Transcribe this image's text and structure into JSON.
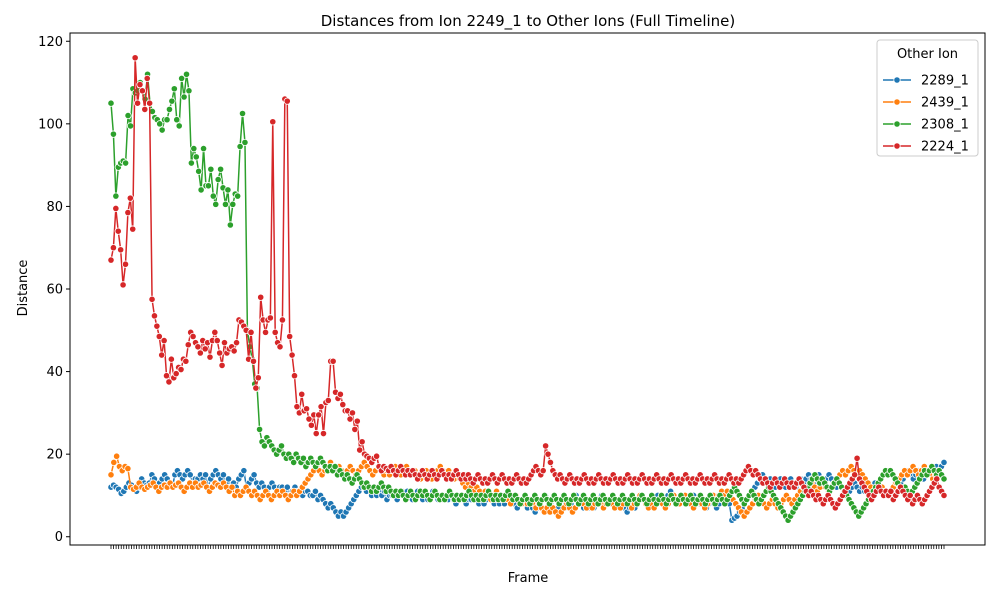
{
  "chart_data": {
    "type": "line",
    "title": "Distances from Ion 2249_1 to Other Ions (Full Timeline)",
    "xlabel": "Frame",
    "ylabel": "Distance",
    "ylim": [
      -2,
      122
    ],
    "yticks": [
      0,
      20,
      40,
      60,
      80,
      100,
      120
    ],
    "legend": {
      "title": "Other Ion",
      "placement": "top-right"
    },
    "grid": false,
    "marker": "circle",
    "series": [
      {
        "name": "2289_1",
        "color": "#1f77b4",
        "values": [
          12,
          12.5,
          12,
          11.5,
          10.5,
          11,
          12,
          13,
          12.5,
          11.5,
          11,
          12,
          14,
          13,
          12.5,
          13,
          15,
          14,
          12,
          13,
          14,
          15,
          14,
          13,
          12,
          15,
          16,
          15,
          14,
          15,
          16,
          15,
          13,
          14,
          14,
          15,
          14,
          15,
          12,
          14,
          15,
          16,
          15,
          14,
          15,
          13,
          14,
          12,
          13,
          12,
          14,
          15,
          16,
          12,
          13,
          14,
          15,
          13,
          12,
          13,
          12,
          11,
          12,
          13,
          12,
          11,
          12,
          12,
          11,
          12,
          10,
          11,
          12,
          11,
          11,
          10,
          11,
          11,
          10,
          10,
          11,
          9,
          10,
          9,
          8,
          7,
          8,
          7,
          6,
          5,
          6,
          5,
          6,
          7,
          8,
          9,
          10,
          11,
          12,
          12,
          11,
          12,
          10,
          11,
          10,
          11,
          10,
          11,
          9,
          10,
          10,
          11,
          9,
          10,
          11,
          10,
          11,
          10,
          9,
          10,
          11,
          10,
          9,
          10,
          9,
          10,
          11,
          10,
          9,
          10,
          9,
          10,
          9,
          10,
          9,
          8,
          9,
          10,
          9,
          8,
          9,
          9,
          10,
          9,
          8,
          9,
          8,
          9,
          10,
          9,
          8,
          9,
          8,
          9,
          8,
          9,
          10,
          9,
          8,
          7,
          8,
          9,
          8,
          7,
          8,
          7,
          6,
          7,
          8,
          9,
          10,
          9,
          8,
          7,
          6,
          7,
          8,
          9,
          8,
          7,
          8,
          9,
          10,
          9,
          8,
          7,
          8,
          7,
          8,
          7,
          8,
          9,
          10,
          9,
          8,
          9,
          8,
          7,
          8,
          9,
          8,
          7,
          6,
          7,
          8,
          7,
          8,
          9,
          10,
          9,
          8,
          9,
          8,
          9,
          10,
          9,
          8,
          9,
          10,
          11,
          10,
          9,
          8,
          9,
          10,
          9,
          8,
          9,
          10,
          9,
          8,
          9,
          8,
          7,
          8,
          9,
          8,
          7,
          8,
          9,
          10,
          9,
          8,
          4,
          4.5,
          5,
          6,
          7,
          8,
          9,
          10,
          11,
          12,
          13,
          14,
          15,
          14,
          13,
          14,
          13,
          12,
          13,
          14,
          13,
          12,
          13,
          14,
          13,
          12,
          13,
          14,
          13,
          14,
          15,
          14,
          13,
          14,
          15,
          14,
          13,
          14,
          15,
          14,
          13,
          12,
          13,
          12,
          11,
          10,
          11,
          12,
          13,
          12,
          11,
          12,
          11,
          12,
          11,
          12,
          13,
          12,
          11,
          12,
          11,
          10,
          11,
          12,
          13,
          12,
          13,
          14,
          15,
          16,
          15,
          14,
          15,
          16,
          15,
          14,
          15,
          16,
          17,
          16,
          17,
          16,
          17,
          18
        ]
      },
      {
        "name": "2439_1",
        "color": "#ff7f0e",
        "values": [
          15,
          18,
          19.5,
          17,
          16,
          17,
          16.5,
          12,
          11.5,
          12,
          13,
          12,
          11.5,
          12,
          12.5,
          13,
          12,
          11,
          12,
          12.5,
          12,
          13,
          12,
          12.5,
          13,
          12,
          11,
          12,
          13,
          12,
          13,
          12,
          12.5,
          13,
          12,
          11,
          12,
          13,
          12.5,
          12,
          13,
          12,
          11,
          12,
          10,
          11,
          10,
          11,
          12,
          11,
          10,
          11,
          10,
          9,
          10,
          11,
          10,
          9,
          10,
          11,
          10,
          11,
          10,
          9,
          10,
          11,
          10,
          11,
          12,
          13,
          14,
          15,
          16,
          17,
          16,
          15,
          16,
          17,
          18,
          17,
          16,
          17,
          16,
          15,
          16,
          17,
          16,
          15,
          16,
          17,
          18,
          17,
          16,
          15,
          16,
          17,
          16,
          15,
          16,
          15,
          16,
          17,
          16,
          15,
          16,
          17,
          16,
          15,
          16,
          15,
          14,
          15,
          16,
          15,
          14,
          15,
          16,
          17,
          16,
          15,
          16,
          15,
          14,
          15,
          14,
          13,
          12,
          13,
          12,
          11,
          12,
          11,
          10,
          11,
          10,
          9,
          10,
          11,
          10,
          9,
          10,
          9,
          8,
          9,
          10,
          9,
          8,
          9,
          8,
          9,
          8,
          7,
          8,
          7,
          6,
          7,
          6,
          7,
          6,
          5,
          6,
          7,
          8,
          7,
          6,
          7,
          8,
          9,
          8,
          7,
          8,
          7,
          8,
          9,
          8,
          7,
          8,
          9,
          8,
          7,
          8,
          7,
          8,
          9,
          8,
          7,
          8,
          9,
          10,
          9,
          8,
          7,
          8,
          7,
          8,
          9,
          8,
          7,
          8,
          9,
          10,
          9,
          8,
          9,
          10,
          9,
          8,
          7,
          8,
          9,
          8,
          7,
          8,
          9,
          10,
          9,
          10,
          11,
          10,
          11,
          10,
          9,
          8,
          7,
          6,
          5,
          6,
          7,
          8,
          9,
          10,
          9,
          8,
          7,
          8,
          9,
          8,
          7,
          8,
          9,
          10,
          9,
          8,
          9,
          10,
          11,
          12,
          11,
          12,
          13,
          12,
          11,
          12,
          13,
          12,
          11,
          12,
          13,
          14,
          15,
          16,
          15,
          16,
          17,
          16,
          15,
          16,
          15,
          14,
          13,
          12,
          11,
          12,
          11,
          12,
          11,
          10,
          11,
          12,
          13,
          14,
          15,
          16,
          15,
          16,
          17,
          16,
          15,
          16,
          17,
          16,
          15,
          14,
          15,
          16,
          15,
          14
        ]
      },
      {
        "name": "2308_1",
        "color": "#2ca02c",
        "values": [
          105,
          97.5,
          82.5,
          89.5,
          90.5,
          91,
          90.5,
          102,
          99.5,
          108.5,
          107.5,
          108,
          110,
          108,
          106,
          112,
          105,
          103,
          101.5,
          101,
          100,
          98.5,
          101,
          101,
          103.5,
          105.5,
          108.5,
          101,
          99.5,
          111,
          106.5,
          112,
          108,
          90.5,
          94,
          92,
          88.5,
          84,
          94,
          85,
          85,
          89,
          82.5,
          80.5,
          86.5,
          89,
          84.5,
          80.5,
          84,
          75.5,
          80.5,
          83,
          82.5,
          94.5,
          102.5,
          95.5,
          50,
          46,
          43,
          37,
          36,
          26,
          23,
          22,
          24,
          23,
          22,
          21,
          20,
          21,
          22,
          20,
          19,
          20,
          19,
          18,
          20,
          19,
          18,
          19,
          17,
          18,
          19,
          18,
          17,
          18,
          19,
          18,
          17,
          16,
          17,
          16,
          17,
          15,
          16,
          15,
          14,
          15,
          14,
          13,
          14,
          15,
          14,
          13,
          12,
          13,
          12,
          11,
          12,
          11,
          12,
          13,
          12,
          11,
          12,
          11,
          10,
          11,
          10,
          11,
          10,
          9,
          10,
          11,
          10,
          9,
          10,
          11,
          10,
          11,
          10,
          9,
          10,
          11,
          10,
          9,
          10,
          9,
          10,
          11,
          10,
          9,
          10,
          9,
          10,
          9,
          10,
          11,
          10,
          9,
          10,
          9,
          10,
          9,
          10,
          11,
          10,
          9,
          10,
          9,
          10,
          9,
          10,
          11,
          10,
          9,
          10,
          9,
          8,
          9,
          10,
          9,
          8,
          9,
          10,
          9,
          8,
          9,
          10,
          9,
          8,
          9,
          10,
          9,
          8,
          9,
          10,
          9,
          8,
          9,
          10,
          9,
          8,
          9,
          10,
          9,
          8,
          9,
          10,
          9,
          8,
          9,
          10,
          9,
          8,
          9,
          10,
          9,
          8,
          9,
          10,
          9,
          8,
          9,
          10,
          9,
          8,
          9,
          10,
          9,
          8,
          9,
          10,
          9,
          8,
          9,
          10,
          9,
          8,
          9,
          10,
          9,
          8,
          9,
          10,
          9,
          8,
          9,
          10,
          9,
          8,
          9,
          10,
          9,
          8,
          9,
          10,
          9,
          8,
          9,
          10,
          9,
          8,
          9,
          10,
          11,
          12,
          11,
          10,
          9,
          8,
          9,
          10,
          11,
          10,
          9,
          8,
          9,
          10,
          11,
          12,
          11,
          10,
          9,
          8,
          7,
          6,
          5,
          4,
          5,
          6,
          7,
          8,
          9,
          10,
          11,
          12,
          13,
          14,
          15,
          14,
          13,
          14,
          13,
          12,
          11,
          12,
          13,
          14,
          13,
          12,
          11,
          10,
          9,
          8,
          7,
          6,
          5,
          6,
          7,
          8,
          9,
          10,
          11,
          12,
          13,
          14,
          15,
          16,
          15,
          16,
          15,
          14,
          13,
          12,
          11,
          12,
          11,
          10,
          11,
          12,
          13,
          14,
          15,
          16,
          15,
          16,
          17,
          16,
          15,
          16,
          15,
          14
        ]
      },
      {
        "name": "2224_1",
        "color": "#d62728",
        "values": [
          67,
          70,
          79.5,
          74,
          69.5,
          61,
          66,
          78.5,
          82,
          74.5,
          116,
          105,
          109.5,
          108,
          103.5,
          111,
          105,
          57.5,
          53.5,
          51,
          48.5,
          44,
          47.5,
          39,
          37.5,
          43,
          38.5,
          39.5,
          41,
          40.5,
          43,
          42.5,
          46.5,
          49.5,
          48.5,
          47,
          46,
          44.5,
          47.5,
          45.5,
          47,
          43.5,
          47.5,
          49.5,
          47.5,
          44.5,
          41.5,
          47,
          44.5,
          45.5,
          46,
          45,
          47,
          52.5,
          52,
          51,
          50,
          43,
          49.5,
          42.5,
          36,
          38.5,
          58,
          52.5,
          49.5,
          52.5,
          53,
          100.5,
          49.5,
          47,
          46,
          52.5,
          106,
          105.5,
          48.5,
          44,
          39,
          31.5,
          30,
          34.5,
          30.5,
          31,
          28.5,
          27,
          29.5,
          25,
          29.5,
          31.5,
          25,
          32.5,
          33,
          42.5,
          42.5,
          35,
          33.5,
          34.5,
          32,
          30.5,
          30.5,
          28.5,
          30,
          26,
          28,
          21,
          23,
          20,
          19.5,
          19,
          18,
          19,
          19.5,
          17,
          16,
          17,
          16.5,
          16,
          17,
          16,
          15,
          16,
          17,
          16,
          15,
          16,
          15,
          16,
          15,
          14,
          15,
          16,
          15,
          14,
          15,
          16,
          15,
          14,
          15,
          16,
          15,
          14,
          15,
          14,
          15,
          16,
          15,
          14,
          15,
          14,
          15,
          14,
          13,
          14,
          15,
          14,
          13,
          14,
          13,
          14,
          15,
          14,
          13,
          14,
          15,
          14,
          13,
          14,
          13,
          14,
          15,
          14,
          13,
          14,
          13,
          14,
          15,
          16,
          17,
          16,
          15,
          16,
          22,
          20,
          18,
          16,
          15,
          14,
          15,
          14,
          13,
          14,
          15,
          14,
          13,
          14,
          13,
          14,
          15,
          14,
          13,
          14,
          13,
          14,
          15,
          14,
          13,
          14,
          13,
          14,
          15,
          14,
          13,
          14,
          13,
          14,
          15,
          14,
          13,
          14,
          13,
          14,
          15,
          14,
          13,
          14,
          13,
          14,
          15,
          14,
          13,
          14,
          13,
          14,
          15,
          14,
          13,
          14,
          13,
          14,
          15,
          14,
          13,
          14,
          13,
          14,
          15,
          14,
          13,
          14,
          13,
          14,
          15,
          14,
          13,
          14,
          13,
          14,
          15,
          14,
          13,
          14,
          13,
          14,
          15,
          16,
          17,
          16,
          15,
          16,
          15,
          14,
          13,
          14,
          13,
          12,
          13,
          14,
          13,
          12,
          13,
          14,
          13,
          12,
          13,
          12,
          13,
          14,
          13,
          12,
          11,
          10,
          11,
          10,
          9,
          10,
          9,
          8,
          9,
          10,
          9,
          8,
          7,
          8,
          9,
          10,
          11,
          12,
          13,
          14,
          15,
          19,
          14,
          13,
          12,
          11,
          10,
          9,
          10,
          11,
          12,
          11,
          10,
          11,
          10,
          11,
          9,
          10,
          11,
          12,
          11,
          10,
          9,
          10,
          8,
          9,
          10,
          9,
          8,
          9,
          10,
          11,
          12,
          13,
          14,
          12,
          11,
          10
        ]
      }
    ]
  }
}
